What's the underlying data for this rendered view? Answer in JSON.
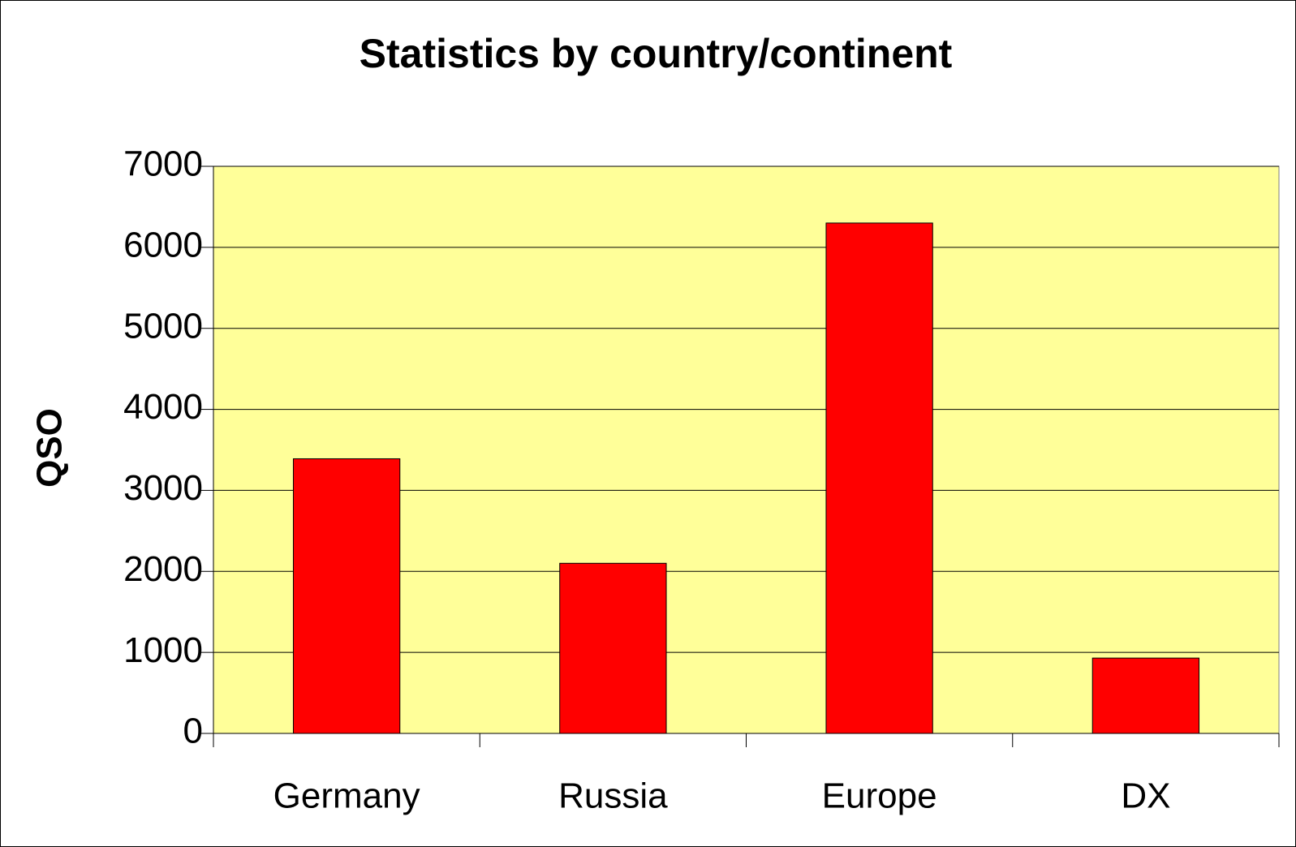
{
  "chart_data": {
    "type": "bar",
    "title": "Statistics by country/continent",
    "y_label": "QSO",
    "categories": [
      "Germany",
      "Russia",
      "Europe",
      "DX"
    ],
    "values": [
      3390,
      2100,
      6300,
      930
    ],
    "color": "#ff0000",
    "plot_background": "#ffff99",
    "ylim": [
      0,
      7000
    ],
    "yticks": [
      0,
      1000,
      2000,
      3000,
      4000,
      5000,
      6000,
      7000
    ],
    "grid": true
  }
}
